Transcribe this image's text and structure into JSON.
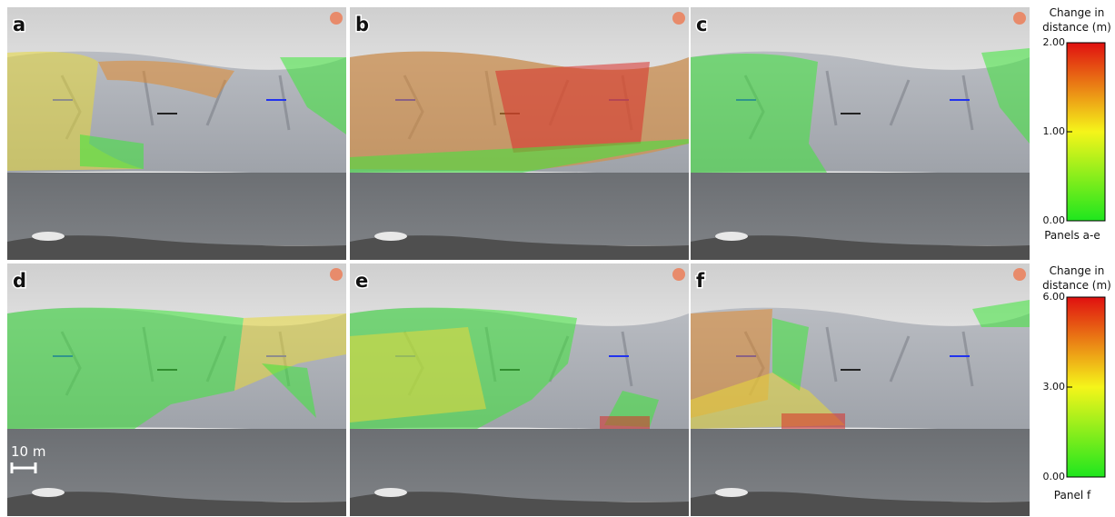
{
  "panels": [
    {
      "label": "a"
    },
    {
      "label": "b"
    },
    {
      "label": "c"
    },
    {
      "label": "d"
    },
    {
      "label": "e"
    },
    {
      "label": "f"
    }
  ],
  "scale_bar": "10 m",
  "colorbars": [
    {
      "title": "Change in distance (m)",
      "lim": [
        0,
        2
      ],
      "ticks": [
        {
          "value": 0,
          "label": "0.00"
        },
        {
          "value": 1,
          "label": "1.00"
        },
        {
          "value": 2,
          "label": "2.00"
        }
      ],
      "caption": "Panels a-e"
    },
    {
      "title": "Change in distance (m)",
      "lim": [
        0,
        6
      ],
      "ticks": [
        {
          "value": 0,
          "label": "0.00"
        },
        {
          "value": 3,
          "label": "3.00"
        },
        {
          "value": 6,
          "label": "6.00"
        }
      ],
      "caption": "Panel f"
    }
  ]
}
